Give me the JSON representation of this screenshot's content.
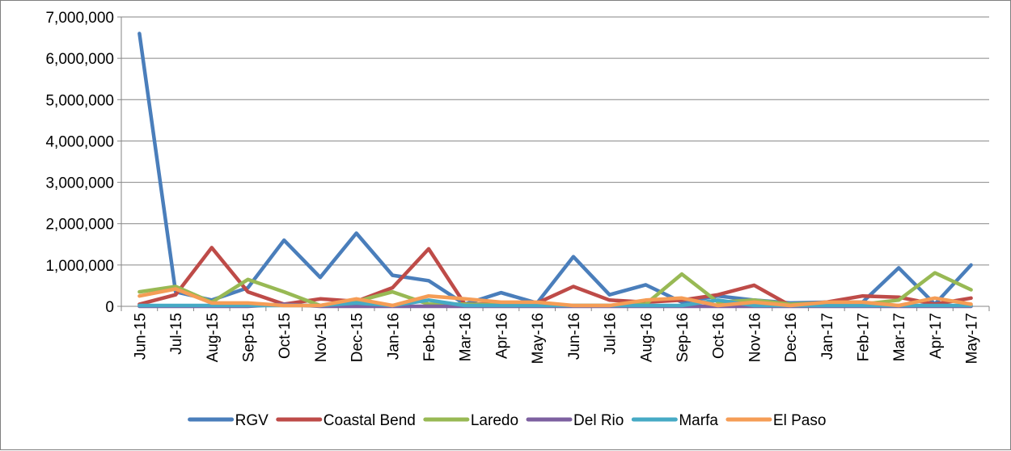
{
  "chart_data": {
    "type": "line",
    "title": "",
    "xlabel": "",
    "ylabel": "",
    "ylim": [
      0,
      7000000
    ],
    "yticks": [
      0,
      1000000,
      2000000,
      3000000,
      4000000,
      5000000,
      6000000,
      7000000
    ],
    "ytick_labels": [
      "0",
      "1,000,000",
      "2,000,000",
      "3,000,000",
      "4,000,000",
      "5,000,000",
      "6,000,000",
      "7,000,000"
    ],
    "grid": true,
    "legend_position": "bottom",
    "categories": [
      "Jun-15",
      "Jul-15",
      "Aug-15",
      "Sep-15",
      "Oct-15",
      "Nov-15",
      "Dec-15",
      "Jan-16",
      "Feb-16",
      "Mar-16",
      "Apr-16",
      "May-16",
      "Jun-16",
      "Jul-16",
      "Aug-16",
      "Sep-16",
      "Oct-16",
      "Nov-16",
      "Dec-16",
      "Jan-17",
      "Feb-17",
      "Mar-17",
      "Apr-17",
      "May-17"
    ],
    "series": [
      {
        "name": "RGV",
        "color": "#4a7ebb",
        "values": [
          6600000,
          350000,
          150000,
          450000,
          1600000,
          700000,
          1770000,
          750000,
          620000,
          50000,
          330000,
          80000,
          1200000,
          280000,
          520000,
          100000,
          250000,
          150000,
          80000,
          100000,
          100000,
          930000,
          50000,
          1000000
        ]
      },
      {
        "name": "Coastal Bend",
        "color": "#be4b48",
        "values": [
          50000,
          280000,
          1420000,
          350000,
          50000,
          180000,
          120000,
          450000,
          1390000,
          50000,
          50000,
          80000,
          480000,
          150000,
          100000,
          150000,
          280000,
          510000,
          20000,
          100000,
          250000,
          220000,
          50000,
          200000
        ]
      },
      {
        "name": "Laredo",
        "color": "#98b954",
        "values": [
          350000,
          480000,
          100000,
          650000,
          350000,
          20000,
          120000,
          350000,
          50000,
          50000,
          30000,
          30000,
          20000,
          20000,
          50000,
          780000,
          100000,
          150000,
          50000,
          80000,
          50000,
          150000,
          810000,
          400000
        ]
      },
      {
        "name": "Del Rio",
        "color": "#7d60a0",
        "values": [
          0,
          0,
          0,
          0,
          50000,
          0,
          0,
          0,
          0,
          0,
          0,
          0,
          0,
          0,
          0,
          0,
          0,
          0,
          0,
          0,
          0,
          0,
          0,
          0
        ]
      },
      {
        "name": "Marfa",
        "color": "#46aac5",
        "values": [
          20000,
          20000,
          20000,
          20000,
          20000,
          20000,
          80000,
          20000,
          150000,
          20000,
          20000,
          20000,
          20000,
          20000,
          20000,
          20000,
          150000,
          20000,
          20000,
          20000,
          20000,
          20000,
          20000,
          20000
        ]
      },
      {
        "name": "El Paso",
        "color": "#f59d56",
        "values": [
          250000,
          420000,
          80000,
          80000,
          20000,
          20000,
          180000,
          20000,
          250000,
          180000,
          100000,
          100000,
          20000,
          20000,
          150000,
          200000,
          20000,
          100000,
          20000,
          100000,
          100000,
          20000,
          200000,
          50000
        ]
      }
    ]
  }
}
